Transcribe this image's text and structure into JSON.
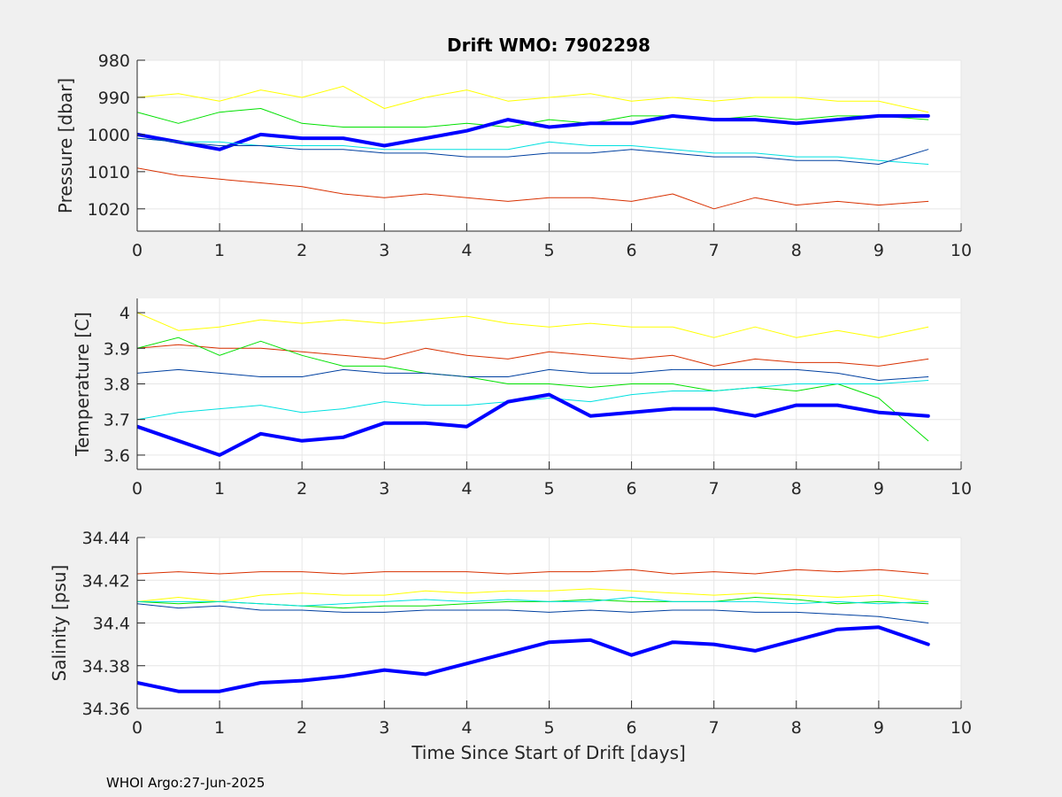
{
  "figure": {
    "title": "Drift WMO: 7902298",
    "xlabel": "Time Since Start of Drift [days]",
    "footer": "WHOI Argo:27-Jun-2025",
    "background": "#f0f0f0",
    "axes_background": "#ffffff"
  },
  "chart_data": [
    {
      "type": "line",
      "ylabel": "Pressure [dbar]",
      "xlim": [
        0,
        10
      ],
      "ylim": [
        980,
        1026
      ],
      "y_reversed": true,
      "xticks": [
        0,
        1,
        2,
        3,
        4,
        5,
        6,
        7,
        8,
        9,
        10
      ],
      "xticklabels": [
        "0",
        "1",
        "2",
        "3",
        "4",
        "5",
        "6",
        "7",
        "8",
        "9",
        "10"
      ],
      "yticks": [
        980,
        990,
        1000,
        1010,
        1020
      ],
      "yticklabels": [
        "980",
        "990",
        "1000",
        "1010",
        "1020"
      ],
      "grid": true,
      "series": [
        {
          "color": "#ffff00",
          "linewidth": 1,
          "x": [
            0,
            0.5,
            1,
            1.5,
            2,
            2.5,
            3,
            3.5,
            4,
            4.5,
            5,
            5.5,
            6,
            6.5,
            7,
            7.5,
            8,
            8.5,
            9,
            9.6
          ],
          "y": [
            990,
            989,
            991,
            988,
            990,
            987,
            993,
            990,
            988,
            991,
            990,
            989,
            991,
            990,
            991,
            990,
            990,
            991,
            991,
            994
          ]
        },
        {
          "color": "#00e000",
          "linewidth": 1,
          "x": [
            0,
            0.5,
            1,
            1.5,
            2,
            2.5,
            3,
            3.5,
            4,
            4.5,
            5,
            5.5,
            6,
            6.5,
            7,
            7.5,
            8,
            8.5,
            9,
            9.6
          ],
          "y": [
            994,
            997,
            994,
            993,
            997,
            998,
            998,
            998,
            997,
            998,
            996,
            997,
            995,
            995,
            996,
            995,
            996,
            995,
            995,
            996
          ]
        },
        {
          "color": "#0000ff",
          "linewidth": 4,
          "x": [
            0,
            0.5,
            1,
            1.5,
            2,
            2.5,
            3,
            3.5,
            4,
            4.5,
            5,
            5.5,
            6,
            6.5,
            7,
            7.5,
            8,
            8.5,
            9,
            9.6
          ],
          "y": [
            1000,
            1002,
            1004,
            1000,
            1001,
            1001,
            1003,
            1001,
            999,
            996,
            998,
            997,
            997,
            995,
            996,
            996,
            997,
            996,
            995,
            995
          ]
        },
        {
          "color": "#00e0e0",
          "linewidth": 1,
          "x": [
            0,
            0.5,
            1,
            1.5,
            2,
            2.5,
            3,
            3.5,
            4,
            4.5,
            5,
            5.5,
            6,
            6.5,
            7,
            7.5,
            8,
            8.5,
            9,
            9.6
          ],
          "y": [
            1001,
            1002,
            1002,
            1003,
            1003,
            1003,
            1004,
            1004,
            1004,
            1004,
            1002,
            1003,
            1003,
            1004,
            1005,
            1005,
            1006,
            1006,
            1007,
            1008
          ]
        },
        {
          "color": "#0040a0",
          "linewidth": 1,
          "x": [
            0,
            0.5,
            1,
            1.5,
            2,
            2.5,
            3,
            3.5,
            4,
            4.5,
            5,
            5.5,
            6,
            6.5,
            7,
            7.5,
            8,
            8.5,
            9,
            9.6
          ],
          "y": [
            1001,
            1002,
            1003,
            1003,
            1004,
            1004,
            1005,
            1005,
            1006,
            1006,
            1005,
            1005,
            1004,
            1005,
            1006,
            1006,
            1007,
            1007,
            1008,
            1004
          ]
        },
        {
          "color": "#d83000",
          "linewidth": 1,
          "x": [
            0,
            0.5,
            1,
            1.5,
            2,
            2.5,
            3,
            3.5,
            4,
            4.5,
            5,
            5.5,
            6,
            6.5,
            7,
            7.5,
            8,
            8.5,
            9,
            9.6
          ],
          "y": [
            1009,
            1011,
            1012,
            1013,
            1014,
            1016,
            1017,
            1016,
            1017,
            1018,
            1017,
            1017,
            1018,
            1016,
            1020,
            1017,
            1019,
            1018,
            1019,
            1018
          ]
        }
      ]
    },
    {
      "type": "line",
      "ylabel": "Temperature [C]",
      "xlim": [
        0,
        10
      ],
      "ylim": [
        3.56,
        4.04
      ],
      "xticks": [
        0,
        1,
        2,
        3,
        4,
        5,
        6,
        7,
        8,
        9,
        10
      ],
      "xticklabels": [
        "0",
        "1",
        "2",
        "3",
        "4",
        "5",
        "6",
        "7",
        "8",
        "9",
        "10"
      ],
      "yticks": [
        3.6,
        3.7,
        3.8,
        3.9,
        4.0
      ],
      "yticklabels": [
        "3.6",
        "3.7",
        "3.8",
        "3.9",
        "4"
      ],
      "grid": true,
      "series": [
        {
          "color": "#ffff00",
          "linewidth": 1,
          "x": [
            0,
            0.5,
            1,
            1.5,
            2,
            2.5,
            3,
            3.5,
            4,
            4.5,
            5,
            5.5,
            6,
            6.5,
            7,
            7.5,
            8,
            8.5,
            9,
            9.6
          ],
          "y": [
            4.0,
            3.95,
            3.96,
            3.98,
            3.97,
            3.98,
            3.97,
            3.98,
            3.99,
            3.97,
            3.96,
            3.97,
            3.96,
            3.96,
            3.93,
            3.96,
            3.93,
            3.95,
            3.93,
            3.96
          ]
        },
        {
          "color": "#d83000",
          "linewidth": 1,
          "x": [
            0,
            0.5,
            1,
            1.5,
            2,
            2.5,
            3,
            3.5,
            4,
            4.5,
            5,
            5.5,
            6,
            6.5,
            7,
            7.5,
            8,
            8.5,
            9,
            9.6
          ],
          "y": [
            3.9,
            3.91,
            3.9,
            3.9,
            3.89,
            3.88,
            3.87,
            3.9,
            3.88,
            3.87,
            3.89,
            3.88,
            3.87,
            3.88,
            3.85,
            3.87,
            3.86,
            3.86,
            3.85,
            3.87
          ]
        },
        {
          "color": "#00e000",
          "linewidth": 1,
          "x": [
            0,
            0.5,
            1,
            1.5,
            2,
            2.5,
            3,
            3.5,
            4,
            4.5,
            5,
            5.5,
            6,
            6.5,
            7,
            7.5,
            8,
            8.5,
            9,
            9.6
          ],
          "y": [
            3.9,
            3.93,
            3.88,
            3.92,
            3.88,
            3.85,
            3.85,
            3.83,
            3.82,
            3.8,
            3.8,
            3.79,
            3.8,
            3.8,
            3.78,
            3.79,
            3.78,
            3.8,
            3.76,
            3.64
          ]
        },
        {
          "color": "#0040a0",
          "linewidth": 1,
          "x": [
            0,
            0.5,
            1,
            1.5,
            2,
            2.5,
            3,
            3.5,
            4,
            4.5,
            5,
            5.5,
            6,
            6.5,
            7,
            7.5,
            8,
            8.5,
            9,
            9.6
          ],
          "y": [
            3.83,
            3.84,
            3.83,
            3.82,
            3.82,
            3.84,
            3.83,
            3.83,
            3.82,
            3.82,
            3.84,
            3.83,
            3.83,
            3.84,
            3.84,
            3.84,
            3.84,
            3.83,
            3.81,
            3.82
          ]
        },
        {
          "color": "#00e0e0",
          "linewidth": 1,
          "x": [
            0,
            0.5,
            1,
            1.5,
            2,
            2.5,
            3,
            3.5,
            4,
            4.5,
            5,
            5.5,
            6,
            6.5,
            7,
            7.5,
            8,
            8.5,
            9,
            9.6
          ],
          "y": [
            3.7,
            3.72,
            3.73,
            3.74,
            3.72,
            3.73,
            3.75,
            3.74,
            3.74,
            3.75,
            3.76,
            3.75,
            3.77,
            3.78,
            3.78,
            3.79,
            3.8,
            3.8,
            3.8,
            3.81
          ]
        },
        {
          "color": "#0000ff",
          "linewidth": 4,
          "x": [
            0,
            0.5,
            1,
            1.5,
            2,
            2.5,
            3,
            3.5,
            4,
            4.5,
            5,
            5.5,
            6,
            6.5,
            7,
            7.5,
            8,
            8.5,
            9,
            9.6
          ],
          "y": [
            3.68,
            3.64,
            3.6,
            3.66,
            3.64,
            3.65,
            3.69,
            3.69,
            3.68,
            3.75,
            3.77,
            3.71,
            3.72,
            3.73,
            3.73,
            3.71,
            3.74,
            3.74,
            3.72,
            3.71
          ]
        }
      ]
    },
    {
      "type": "line",
      "ylabel": "Salinity [psu]",
      "xlim": [
        0,
        10
      ],
      "ylim": [
        34.36,
        34.44
      ],
      "xticks": [
        0,
        1,
        2,
        3,
        4,
        5,
        6,
        7,
        8,
        9,
        10
      ],
      "xticklabels": [
        "0",
        "1",
        "2",
        "3",
        "4",
        "5",
        "6",
        "7",
        "8",
        "9",
        "10"
      ],
      "yticks": [
        34.36,
        34.38,
        34.4,
        34.42,
        34.44
      ],
      "yticklabels": [
        "34.36",
        "34.38",
        "34.4",
        "34.42",
        "34.44"
      ],
      "grid": true,
      "series": [
        {
          "color": "#d83000",
          "linewidth": 1,
          "x": [
            0,
            0.5,
            1,
            1.5,
            2,
            2.5,
            3,
            3.5,
            4,
            4.5,
            5,
            5.5,
            6,
            6.5,
            7,
            7.5,
            8,
            8.5,
            9,
            9.6
          ],
          "y": [
            34.423,
            34.424,
            34.423,
            34.424,
            34.424,
            34.423,
            34.424,
            34.424,
            34.424,
            34.423,
            34.424,
            34.424,
            34.425,
            34.423,
            34.424,
            34.423,
            34.425,
            34.424,
            34.425,
            34.423
          ]
        },
        {
          "color": "#ffff00",
          "linewidth": 1,
          "x": [
            0,
            0.5,
            1,
            1.5,
            2,
            2.5,
            3,
            3.5,
            4,
            4.5,
            5,
            5.5,
            6,
            6.5,
            7,
            7.5,
            8,
            8.5,
            9,
            9.6
          ],
          "y": [
            34.41,
            34.412,
            34.41,
            34.413,
            34.414,
            34.413,
            34.413,
            34.415,
            34.414,
            34.415,
            34.415,
            34.416,
            34.415,
            34.414,
            34.413,
            34.414,
            34.413,
            34.412,
            34.413,
            34.41
          ]
        },
        {
          "color": "#00e000",
          "linewidth": 1,
          "x": [
            0,
            0.5,
            1,
            1.5,
            2,
            2.5,
            3,
            3.5,
            4,
            4.5,
            5,
            5.5,
            6,
            6.5,
            7,
            7.5,
            8,
            8.5,
            9,
            9.6
          ],
          "y": [
            34.41,
            34.409,
            34.41,
            34.409,
            34.408,
            34.407,
            34.408,
            34.408,
            34.409,
            34.41,
            34.41,
            34.411,
            34.41,
            34.41,
            34.41,
            34.412,
            34.411,
            34.409,
            34.41,
            34.409
          ]
        },
        {
          "color": "#00e0e0",
          "linewidth": 1,
          "x": [
            0,
            0.5,
            1,
            1.5,
            2,
            2.5,
            3,
            3.5,
            4,
            4.5,
            5,
            5.5,
            6,
            6.5,
            7,
            7.5,
            8,
            8.5,
            9,
            9.6
          ],
          "y": [
            34.41,
            34.41,
            34.41,
            34.409,
            34.408,
            34.409,
            34.41,
            34.411,
            34.41,
            34.411,
            34.41,
            34.41,
            34.412,
            34.41,
            34.41,
            34.41,
            34.409,
            34.41,
            34.409,
            34.41
          ]
        },
        {
          "color": "#0040a0",
          "linewidth": 1,
          "x": [
            0,
            0.5,
            1,
            1.5,
            2,
            2.5,
            3,
            3.5,
            4,
            4.5,
            5,
            5.5,
            6,
            6.5,
            7,
            7.5,
            8,
            8.5,
            9,
            9.6
          ],
          "y": [
            34.409,
            34.407,
            34.408,
            34.406,
            34.406,
            34.405,
            34.405,
            34.406,
            34.406,
            34.406,
            34.405,
            34.406,
            34.405,
            34.406,
            34.406,
            34.405,
            34.405,
            34.404,
            34.403,
            34.4
          ]
        },
        {
          "color": "#0000ff",
          "linewidth": 4,
          "x": [
            0,
            0.5,
            1,
            1.5,
            2,
            2.5,
            3,
            3.5,
            4,
            4.5,
            5,
            5.5,
            6,
            6.5,
            7,
            7.5,
            8,
            8.5,
            9,
            9.6
          ],
          "y": [
            34.372,
            34.368,
            34.368,
            34.372,
            34.373,
            34.375,
            34.378,
            34.376,
            34.381,
            34.386,
            34.391,
            34.392,
            34.385,
            34.391,
            34.39,
            34.387,
            34.392,
            34.397,
            34.398,
            34.39
          ]
        }
      ]
    }
  ]
}
